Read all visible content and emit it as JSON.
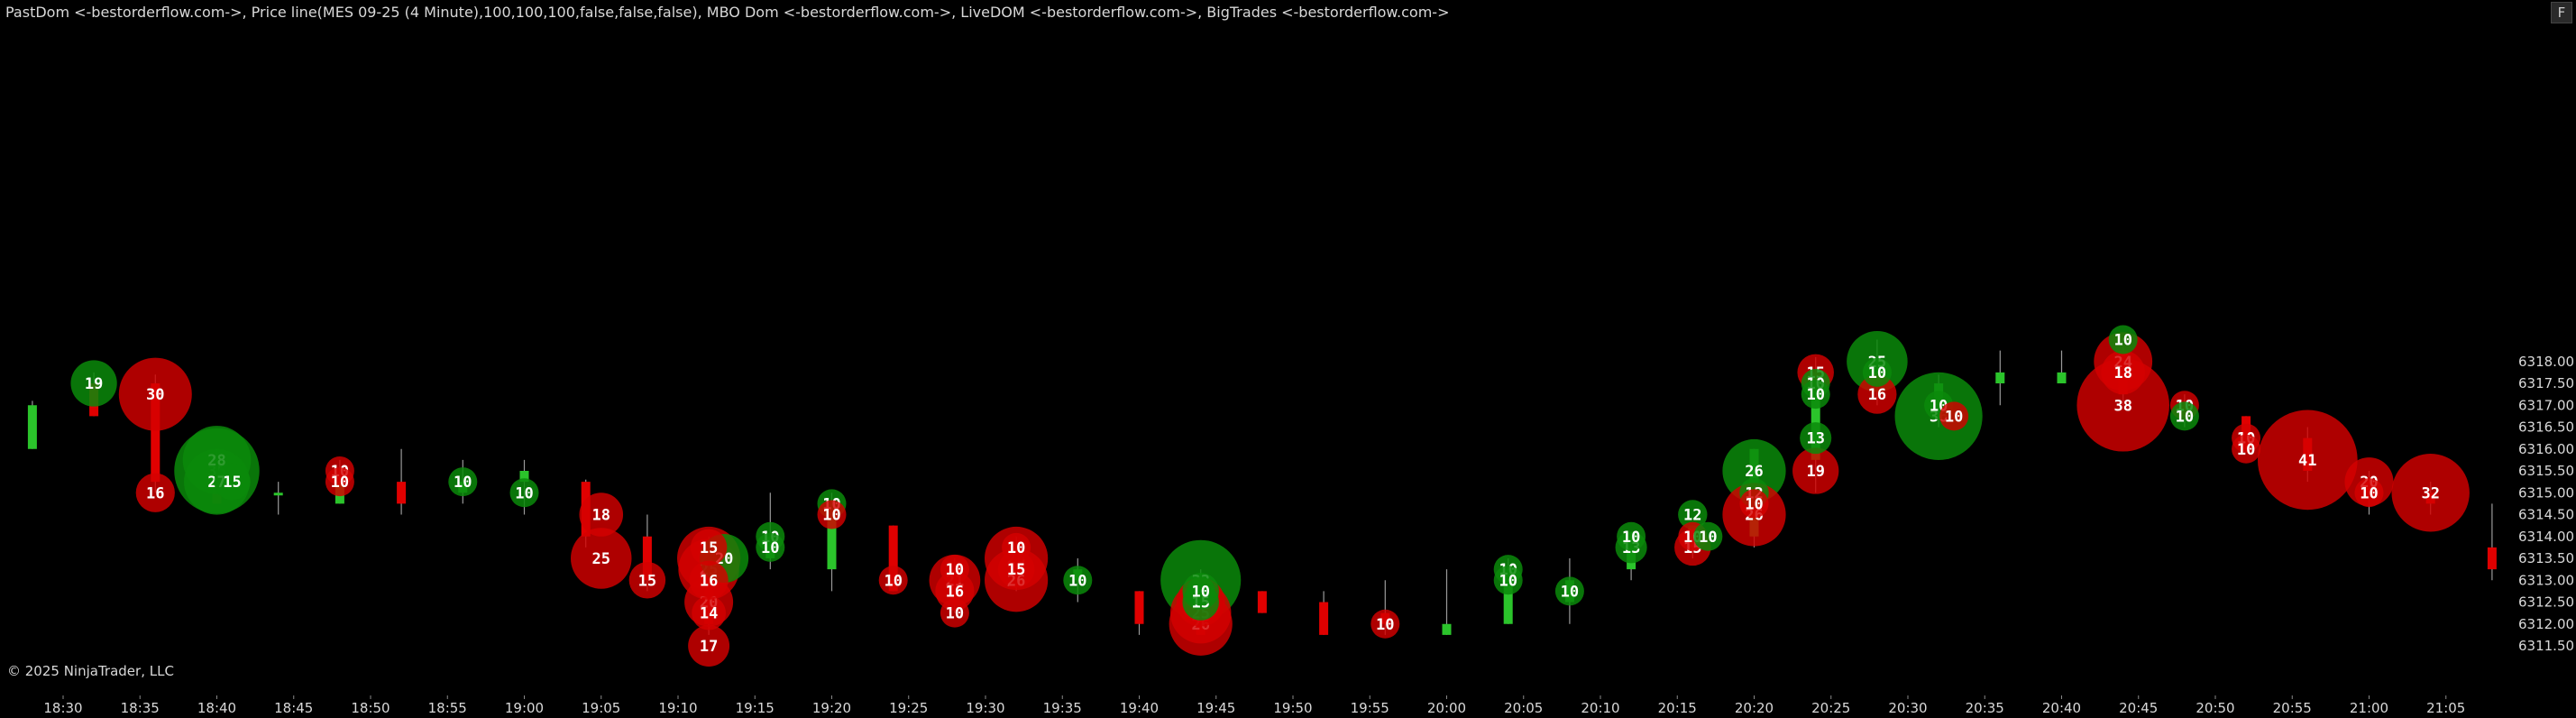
{
  "indicator_line": "PastDom <-bestorderflow.com->, Price line(MES 09-25 (4 Minute),100,100,100,false,false,false), MBO Dom <-bestorderflow.com->, LiveDOM <-bestorderflow.com->, BigTrades <-bestorderflow.com->",
  "copyright": "© 2025 NinjaTrader, LLC",
  "corner_button": "F",
  "colors": {
    "background": "#000000",
    "up": "#2bc42b",
    "down": "#e00000",
    "buy_bubble": "#0b8a0b",
    "sell_bubble": "#d40000",
    "text": "#ffffff",
    "axis_text": "#d8d8d8"
  },
  "chart_data": {
    "type": "scatter",
    "title": "",
    "xlabel": "",
    "ylabel": "",
    "x_ticks": [
      "18:30",
      "18:35",
      "18:40",
      "18:45",
      "18:50",
      "18:55",
      "19:00",
      "19:05",
      "19:10",
      "19:15",
      "19:20",
      "19:25",
      "19:30",
      "19:35",
      "19:40",
      "19:45",
      "19:50",
      "19:55",
      "20:00",
      "20:05",
      "20:10",
      "20:15",
      "20:20",
      "20:25",
      "20:30",
      "20:35",
      "20:40",
      "20:45",
      "20:50",
      "20:55",
      "21:00",
      "21:05"
    ],
    "y_ticks": [
      6311.5,
      6312.0,
      6312.5,
      6313.0,
      6313.5,
      6314.0,
      6314.5,
      6315.0,
      6315.5,
      6316.0,
      6316.5,
      6317.0,
      6317.5,
      6318.0
    ],
    "ylim": [
      6311.25,
      6318.55
    ],
    "bar_interval_min": 4,
    "candles": [
      {
        "t": "18:28",
        "o": 6316.0,
        "h": 6317.1,
        "l": 6316.0,
        "c": 6317.0
      },
      {
        "t": "18:32",
        "o": 6317.5,
        "h": 6317.75,
        "l": 6316.75,
        "c": 6316.75
      },
      {
        "t": "18:36",
        "o": 6317.5,
        "h": 6317.7,
        "l": 6315.0,
        "c": 6315.25
      },
      {
        "t": "18:40",
        "o": 6315.5,
        "h": 6316.0,
        "l": 6314.75,
        "c": 6314.75
      },
      {
        "t": "18:44",
        "o": 6315.0,
        "h": 6315.25,
        "l": 6314.5,
        "c": 6315.0
      },
      {
        "t": "18:48",
        "o": 6314.75,
        "h": 6315.75,
        "l": 6314.75,
        "c": 6315.25
      },
      {
        "t": "18:52",
        "o": 6315.25,
        "h": 6316.0,
        "l": 6314.5,
        "c": 6314.75
      },
      {
        "t": "18:56",
        "o": 6315.0,
        "h": 6315.75,
        "l": 6314.75,
        "c": 6315.25
      },
      {
        "t": "19:00",
        "o": 6315.25,
        "h": 6315.75,
        "l": 6314.5,
        "c": 6315.5
      },
      {
        "t": "19:04",
        "o": 6315.25,
        "h": 6315.3,
        "l": 6313.75,
        "c": 6314.0
      },
      {
        "t": "19:08",
        "o": 6314.0,
        "h": 6314.5,
        "l": 6312.75,
        "c": 6313.0
      },
      {
        "t": "19:12",
        "o": 6313.75,
        "h": 6314.0,
        "l": 6311.75,
        "c": 6312.0
      },
      {
        "t": "19:16",
        "o": 6313.5,
        "h": 6315.0,
        "l": 6313.25,
        "c": 6314.0
      },
      {
        "t": "19:20",
        "o": 6313.25,
        "h": 6315.0,
        "l": 6312.75,
        "c": 6314.75
      },
      {
        "t": "19:24",
        "o": 6314.25,
        "h": 6314.25,
        "l": 6312.75,
        "c": 6312.75
      },
      {
        "t": "19:28",
        "o": 6313.25,
        "h": 6313.5,
        "l": 6312.25,
        "c": 6312.5
      },
      {
        "t": "19:32",
        "o": 6313.5,
        "h": 6314.0,
        "l": 6312.75,
        "c": 6313.25
      },
      {
        "t": "19:36",
        "o": 6313.0,
        "h": 6313.5,
        "l": 6312.5,
        "c": 6313.25
      },
      {
        "t": "19:40",
        "o": 6312.75,
        "h": 6312.75,
        "l": 6311.75,
        "c": 6312.0
      },
      {
        "t": "19:44",
        "o": 6312.25,
        "h": 6313.25,
        "l": 6311.75,
        "c": 6311.75
      },
      {
        "t": "19:48",
        "o": 6312.75,
        "h": 6312.75,
        "l": 6312.25,
        "c": 6312.25
      },
      {
        "t": "19:52",
        "o": 6312.5,
        "h": 6312.75,
        "l": 6311.75,
        "c": 6311.75
      },
      {
        "t": "19:56",
        "o": 6312.25,
        "h": 6313.0,
        "l": 6311.75,
        "c": 6312.0
      },
      {
        "t": "20:00",
        "o": 6311.75,
        "h": 6313.25,
        "l": 6311.75,
        "c": 6312.0
      },
      {
        "t": "20:04",
        "o": 6312.0,
        "h": 6313.5,
        "l": 6312.0,
        "c": 6313.25
      },
      {
        "t": "20:08",
        "o": 6312.5,
        "h": 6313.5,
        "l": 6312.0,
        "c": 6313.0
      },
      {
        "t": "20:12",
        "o": 6313.25,
        "h": 6314.0,
        "l": 6313.0,
        "c": 6313.75
      },
      {
        "t": "20:16",
        "o": 6313.75,
        "h": 6314.25,
        "l": 6313.5,
        "c": 6314.25
      },
      {
        "t": "20:20",
        "o": 6314.0,
        "h": 6316.0,
        "l": 6313.75,
        "c": 6316.0
      },
      {
        "t": "20:24",
        "o": 6315.75,
        "h": 6318.1,
        "l": 6315.0,
        "c": 6317.75
      },
      {
        "t": "20:28",
        "o": 6317.75,
        "h": 6318.5,
        "l": 6317.0,
        "c": 6317.5
      },
      {
        "t": "20:32",
        "o": 6317.0,
        "h": 6317.7,
        "l": 6316.5,
        "c": 6317.5
      },
      {
        "t": "20:36",
        "o": 6317.5,
        "h": 6318.25,
        "l": 6317.0,
        "c": 6317.75
      },
      {
        "t": "20:40",
        "o": 6317.5,
        "h": 6318.25,
        "l": 6317.5,
        "c": 6317.75
      },
      {
        "t": "20:44",
        "o": 6318.25,
        "h": 6318.55,
        "l": 6317.0,
        "c": 6317.25
      },
      {
        "t": "20:48",
        "o": 6317.0,
        "h": 6317.25,
        "l": 6316.5,
        "c": 6316.75
      },
      {
        "t": "20:52",
        "o": 6316.75,
        "h": 6316.75,
        "l": 6316.0,
        "c": 6316.0
      },
      {
        "t": "20:56",
        "o": 6316.25,
        "h": 6316.5,
        "l": 6315.25,
        "c": 6315.5
      },
      {
        "t": "21:00",
        "o": 6315.25,
        "h": 6315.5,
        "l": 6314.5,
        "c": 6315.0
      },
      {
        "t": "21:04",
        "o": 6315.0,
        "h": 6315.25,
        "l": 6314.5,
        "c": 6314.75
      },
      {
        "t": "21:08",
        "o": 6313.75,
        "h": 6314.75,
        "l": 6313.0,
        "c": 6313.25
      }
    ],
    "big_trades": [
      {
        "t": "18:32",
        "p": 6317.5,
        "v": 19,
        "side": "buy"
      },
      {
        "t": "18:36",
        "p": 6317.25,
        "v": 30,
        "side": "sell"
      },
      {
        "t": "18:36",
        "p": 6315.0,
        "v": 16,
        "side": "sell"
      },
      {
        "t": "18:40",
        "p": 6315.75,
        "v": 28,
        "side": "buy"
      },
      {
        "t": "18:40",
        "p": 6315.5,
        "v": 35,
        "side": "buy"
      },
      {
        "t": "18:40",
        "p": 6315.25,
        "v": 27,
        "side": "buy"
      },
      {
        "t": "18:41",
        "p": 6315.25,
        "v": 15,
        "side": "buy"
      },
      {
        "t": "18:48",
        "p": 6315.5,
        "v": 10,
        "side": "sell"
      },
      {
        "t": "18:48",
        "p": 6315.25,
        "v": 10,
        "side": "sell"
      },
      {
        "t": "18:56",
        "p": 6315.25,
        "v": 10,
        "side": "buy"
      },
      {
        "t": "19:00",
        "p": 6315.0,
        "v": 10,
        "side": "buy"
      },
      {
        "t": "19:05",
        "p": 6314.5,
        "v": 18,
        "side": "sell"
      },
      {
        "t": "19:05",
        "p": 6313.5,
        "v": 25,
        "side": "sell"
      },
      {
        "t": "19:08",
        "p": 6313.0,
        "v": 15,
        "side": "sell"
      },
      {
        "t": "19:12",
        "p": 6313.75,
        "v": 15,
        "side": "sell"
      },
      {
        "t": "19:12",
        "p": 6313.5,
        "v": 26,
        "side": "sell"
      },
      {
        "t": "19:12",
        "p": 6313.25,
        "v": 25,
        "side": "sell"
      },
      {
        "t": "19:12",
        "p": 6313.0,
        "v": 16,
        "side": "sell"
      },
      {
        "t": "19:12",
        "p": 6312.5,
        "v": 20,
        "side": "sell"
      },
      {
        "t": "19:12",
        "p": 6312.25,
        "v": 14,
        "side": "sell"
      },
      {
        "t": "19:12",
        "p": 6311.5,
        "v": 17,
        "side": "sell"
      },
      {
        "t": "19:13",
        "p": 6313.5,
        "v": 20,
        "side": "buy"
      },
      {
        "t": "19:16",
        "p": 6314.0,
        "v": 10,
        "side": "buy"
      },
      {
        "t": "19:16",
        "p": 6313.75,
        "v": 10,
        "side": "buy"
      },
      {
        "t": "19:20",
        "p": 6314.75,
        "v": 10,
        "side": "buy"
      },
      {
        "t": "19:20",
        "p": 6314.5,
        "v": 10,
        "side": "sell"
      },
      {
        "t": "19:24",
        "p": 6313.0,
        "v": 10,
        "side": "sell"
      },
      {
        "t": "19:28",
        "p": 6313.25,
        "v": 10,
        "side": "sell"
      },
      {
        "t": "19:28",
        "p": 6313.0,
        "v": 21,
        "side": "sell"
      },
      {
        "t": "19:28",
        "p": 6312.75,
        "v": 16,
        "side": "sell"
      },
      {
        "t": "19:28",
        "p": 6312.25,
        "v": 10,
        "side": "sell"
      },
      {
        "t": "19:32",
        "p": 6313.75,
        "v": 10,
        "side": "sell"
      },
      {
        "t": "19:32",
        "p": 6313.5,
        "v": 26,
        "side": "sell"
      },
      {
        "t": "19:32",
        "p": 6313.25,
        "v": 15,
        "side": "sell"
      },
      {
        "t": "19:32",
        "p": 6313.0,
        "v": 26,
        "side": "sell"
      },
      {
        "t": "19:36",
        "p": 6313.0,
        "v": 10,
        "side": "buy"
      },
      {
        "t": "19:44",
        "p": 6313.0,
        "v": 33,
        "side": "buy"
      },
      {
        "t": "19:44",
        "p": 6312.75,
        "v": 15,
        "side": "buy"
      },
      {
        "t": "19:44",
        "p": 6312.75,
        "v": 10,
        "side": "buy"
      },
      {
        "t": "19:44",
        "p": 6312.5,
        "v": 20,
        "side": "sell"
      },
      {
        "t": "19:44",
        "p": 6312.5,
        "v": 15,
        "side": "buy"
      },
      {
        "t": "19:44",
        "p": 6312.25,
        "v": 25,
        "side": "sell"
      },
      {
        "t": "19:44",
        "p": 6312.0,
        "v": 26,
        "side": "sell"
      },
      {
        "t": "19:56",
        "p": 6312.0,
        "v": 10,
        "side": "sell"
      },
      {
        "t": "20:04",
        "p": 6313.25,
        "v": 10,
        "side": "buy"
      },
      {
        "t": "20:04",
        "p": 6313.0,
        "v": 10,
        "side": "buy"
      },
      {
        "t": "20:08",
        "p": 6312.75,
        "v": 10,
        "side": "buy"
      },
      {
        "t": "20:12",
        "p": 6314.0,
        "v": 10,
        "side": "buy"
      },
      {
        "t": "20:12",
        "p": 6313.75,
        "v": 13,
        "side": "buy"
      },
      {
        "t": "20:16",
        "p": 6314.5,
        "v": 12,
        "side": "buy"
      },
      {
        "t": "20:16",
        "p": 6314.0,
        "v": 10,
        "side": "sell"
      },
      {
        "t": "20:16",
        "p": 6313.75,
        "v": 15,
        "side": "sell"
      },
      {
        "t": "20:17",
        "p": 6314.0,
        "v": 10,
        "side": "buy"
      },
      {
        "t": "20:20",
        "p": 6315.5,
        "v": 26,
        "side": "buy"
      },
      {
        "t": "20:20",
        "p": 6315.0,
        "v": 12,
        "side": "buy"
      },
      {
        "t": "20:20",
        "p": 6314.75,
        "v": 10,
        "side": "sell"
      },
      {
        "t": "20:20",
        "p": 6314.5,
        "v": 26,
        "side": "sell"
      },
      {
        "t": "20:24",
        "p": 6317.75,
        "v": 15,
        "side": "sell"
      },
      {
        "t": "20:24",
        "p": 6317.5,
        "v": 10,
        "side": "buy"
      },
      {
        "t": "20:24",
        "p": 6317.25,
        "v": 10,
        "side": "buy"
      },
      {
        "t": "20:24",
        "p": 6316.25,
        "v": 13,
        "side": "buy"
      },
      {
        "t": "20:24",
        "p": 6315.5,
        "v": 19,
        "side": "sell"
      },
      {
        "t": "20:28",
        "p": 6318.0,
        "v": 25,
        "side": "buy"
      },
      {
        "t": "20:28",
        "p": 6317.75,
        "v": 10,
        "side": "buy"
      },
      {
        "t": "20:28",
        "p": 6317.25,
        "v": 16,
        "side": "sell"
      },
      {
        "t": "20:32",
        "p": 6317.0,
        "v": 10,
        "side": "buy"
      },
      {
        "t": "20:32",
        "p": 6316.75,
        "v": 36,
        "side": "buy"
      },
      {
        "t": "20:33",
        "p": 6316.75,
        "v": 10,
        "side": "sell"
      },
      {
        "t": "20:44",
        "p": 6318.5,
        "v": 10,
        "side": "buy"
      },
      {
        "t": "20:44",
        "p": 6318.0,
        "v": 24,
        "side": "sell"
      },
      {
        "t": "20:44",
        "p": 6317.75,
        "v": 18,
        "side": "sell"
      },
      {
        "t": "20:44",
        "p": 6317.0,
        "v": 38,
        "side": "sell"
      },
      {
        "t": "20:48",
        "p": 6317.0,
        "v": 10,
        "side": "sell"
      },
      {
        "t": "20:48",
        "p": 6316.75,
        "v": 10,
        "side": "buy"
      },
      {
        "t": "20:52",
        "p": 6316.25,
        "v": 10,
        "side": "sell"
      },
      {
        "t": "20:52",
        "p": 6316.0,
        "v": 10,
        "side": "sell"
      },
      {
        "t": "20:56",
        "p": 6315.75,
        "v": 41,
        "side": "sell"
      },
      {
        "t": "21:00",
        "p": 6315.25,
        "v": 20,
        "side": "sell"
      },
      {
        "t": "21:00",
        "p": 6315.0,
        "v": 10,
        "side": "sell"
      },
      {
        "t": "21:04",
        "p": 6315.0,
        "v": 32,
        "side": "sell"
      }
    ]
  }
}
